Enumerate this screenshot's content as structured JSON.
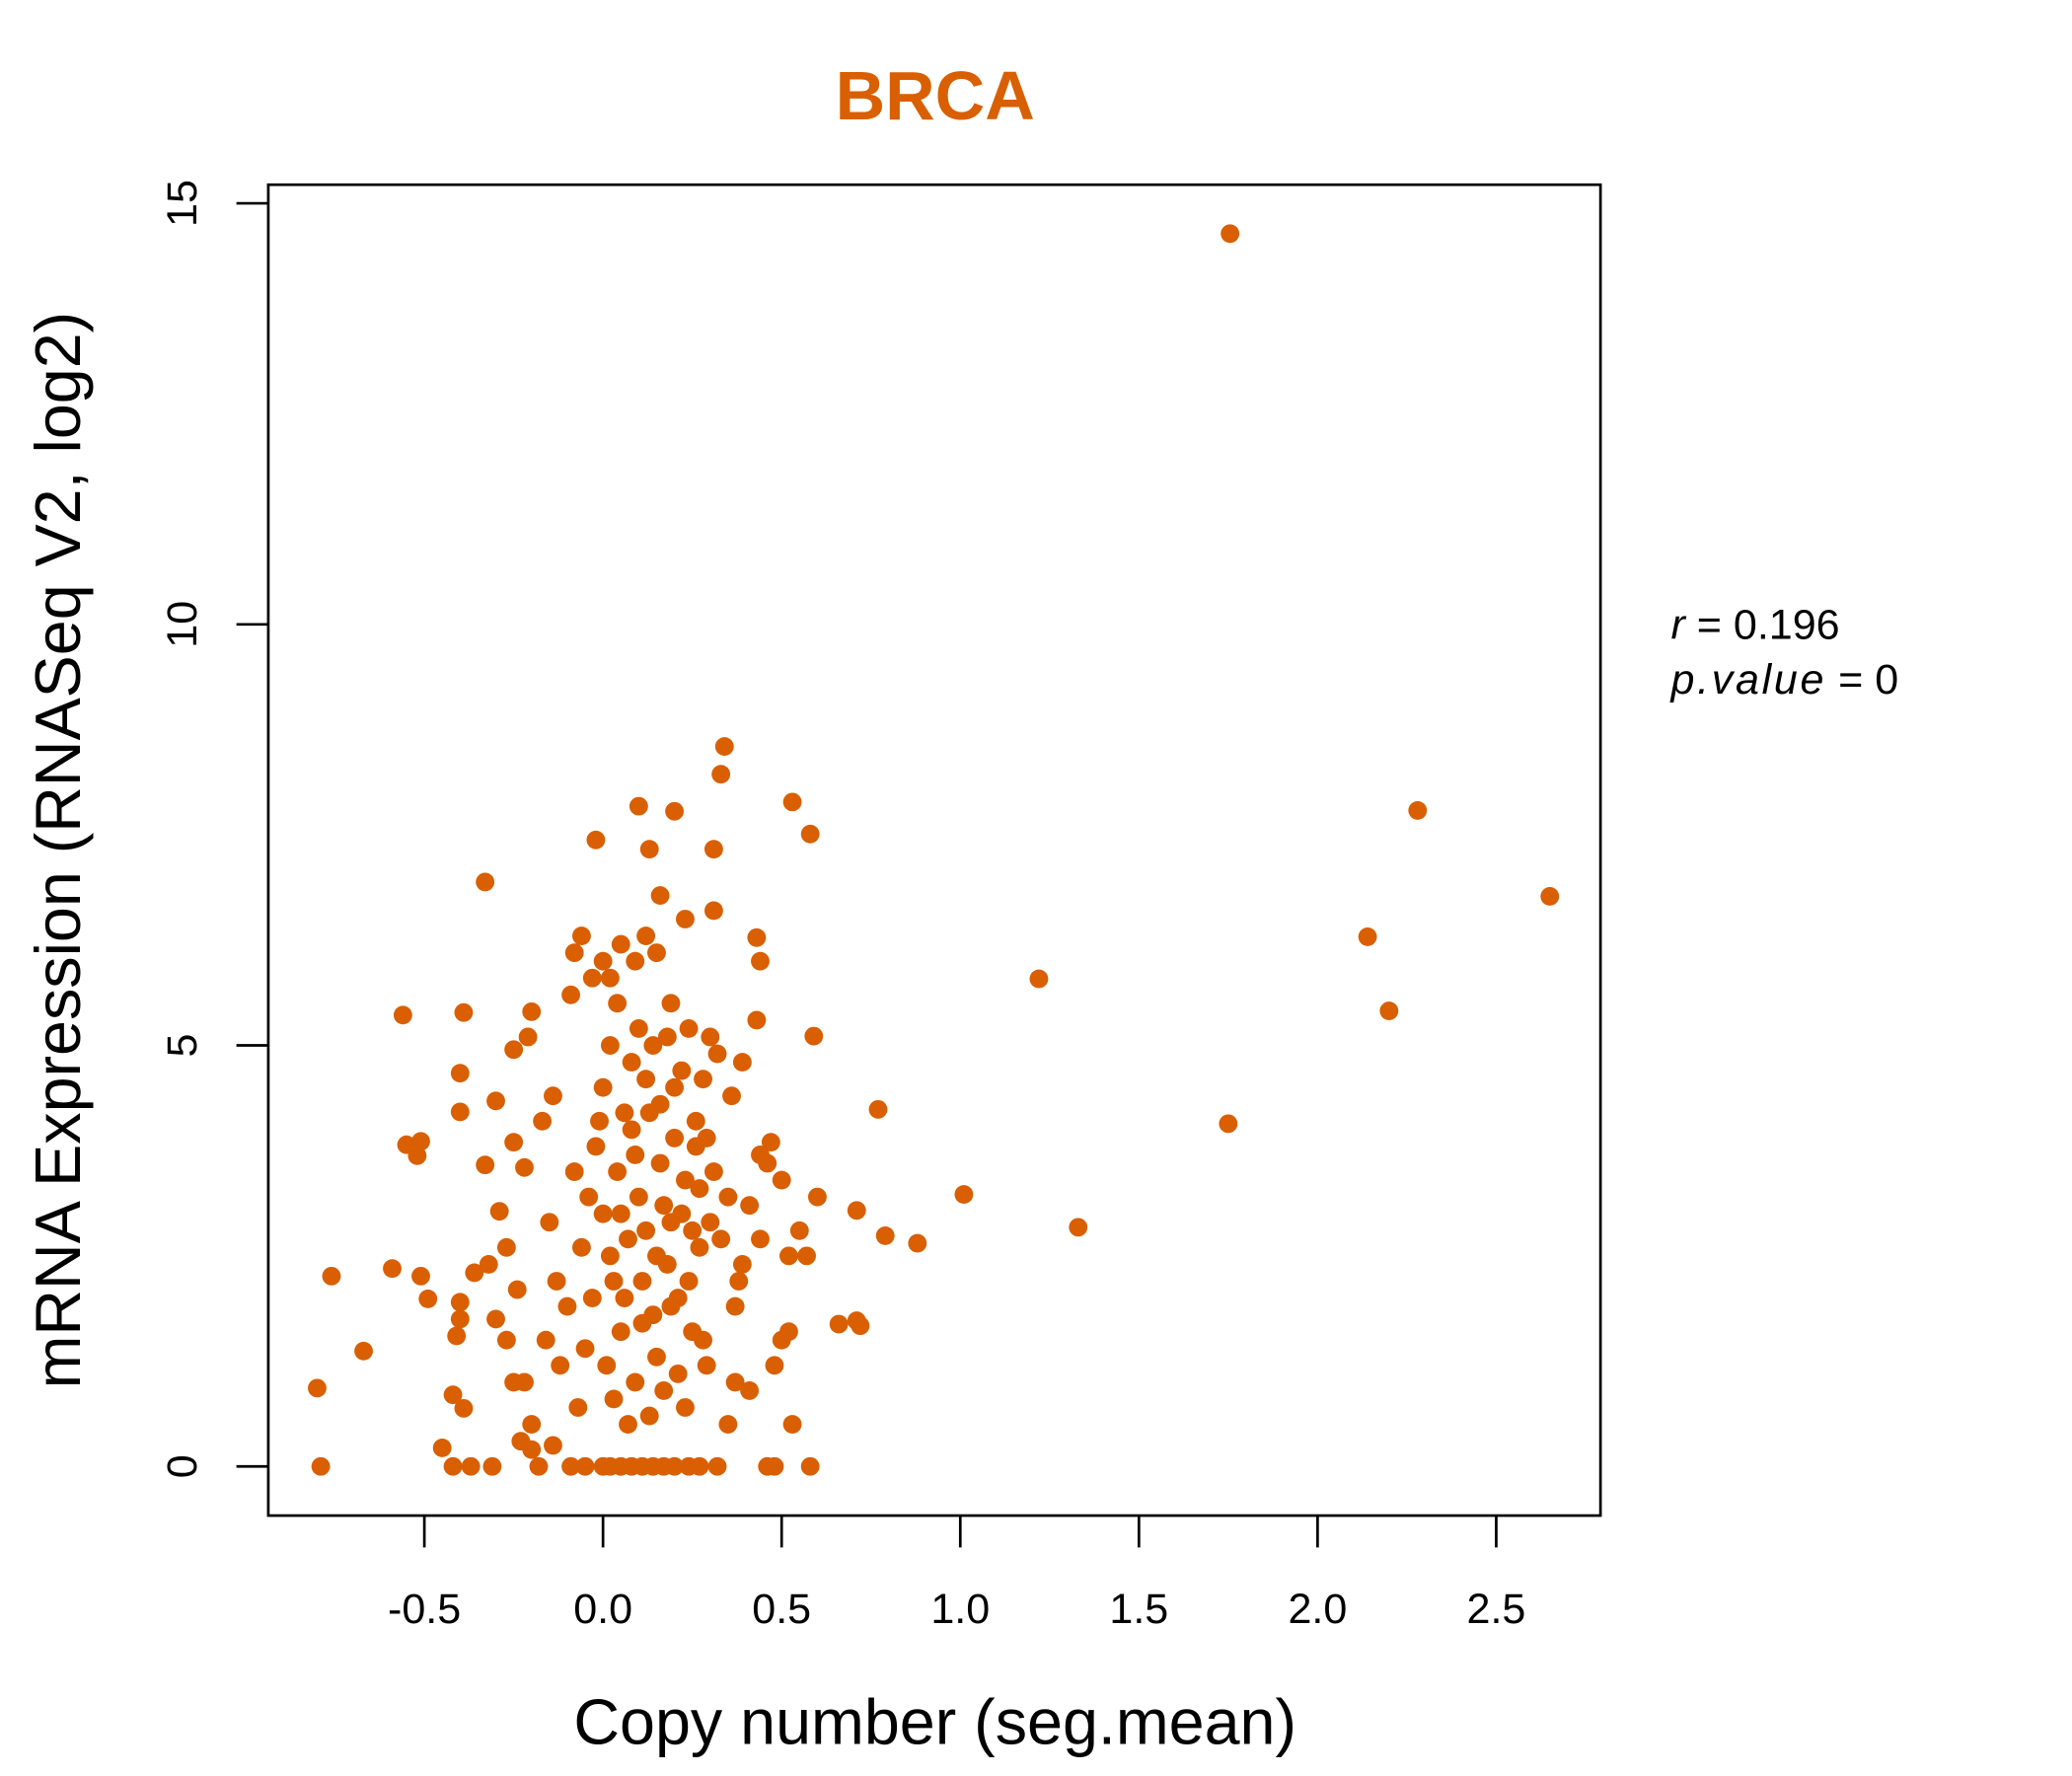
{
  "chart_data": {
    "type": "scatter",
    "title": "BRCA",
    "xlabel": "Copy number (seg.mean)",
    "ylabel": "mRNA Expression (RNASeq V2, log2)",
    "xlim": [
      -0.95,
      2.8
    ],
    "ylim": [
      -0.6,
      15.5
    ],
    "x_ticks": [
      -0.5,
      0.0,
      0.5,
      1.0,
      1.5,
      2.0,
      2.5
    ],
    "x_tick_labels": [
      "-0.5",
      "0.0",
      "0.5",
      "1.0",
      "1.5",
      "2.0",
      "2.5"
    ],
    "y_ticks": [
      0,
      5,
      10,
      15
    ],
    "y_tick_labels": [
      "0",
      "5",
      "10",
      "15"
    ],
    "grid": false,
    "point_color": "#D95F02",
    "title_color": "#D95F02",
    "annotation": {
      "r_label": "r",
      "r_value": "0.196",
      "p_label": "p.value",
      "p_value": "0",
      "placement": "right"
    },
    "points": [
      [
        1.755,
        14.64
      ],
      [
        2.28,
        7.79
      ],
      [
        2.65,
        6.77
      ],
      [
        2.14,
        6.29
      ],
      [
        2.2,
        5.41
      ],
      [
        1.75,
        4.07
      ],
      [
        1.22,
        5.79
      ],
      [
        1.33,
        2.84
      ],
      [
        1.01,
        3.23
      ],
      [
        0.88,
        2.65
      ],
      [
        0.79,
        2.74
      ],
      [
        0.77,
        4.24
      ],
      [
        0.34,
        8.55
      ],
      [
        0.33,
        8.22
      ],
      [
        0.53,
        7.89
      ],
      [
        0.58,
        7.51
      ],
      [
        -0.02,
        7.44
      ],
      [
        -0.33,
        6.94
      ],
      [
        0.1,
        7.84
      ],
      [
        0.2,
        7.78
      ],
      [
        0.13,
        7.33
      ],
      [
        0.31,
        7.33
      ],
      [
        0.16,
        6.78
      ],
      [
        -0.56,
        5.36
      ],
      [
        -0.39,
        5.39
      ],
      [
        0.59,
        5.11
      ],
      [
        -0.8,
        0.93
      ],
      [
        -0.79,
        0
      ],
      [
        -0.76,
        2.26
      ],
      [
        -0.67,
        1.37
      ],
      [
        -0.59,
        2.35
      ],
      [
        -0.51,
        2.26
      ],
      [
        -0.49,
        1.99
      ],
      [
        -0.55,
        3.82
      ],
      [
        -0.52,
        3.69
      ],
      [
        -0.51,
        3.86
      ],
      [
        -0.45,
        0.22
      ],
      [
        -0.42,
        0
      ],
      [
        -0.37,
        0
      ],
      [
        -0.31,
        0
      ],
      [
        -0.4,
        4.67
      ],
      [
        -0.4,
        4.21
      ],
      [
        -0.33,
        3.58
      ],
      [
        -0.3,
        4.34
      ],
      [
        -0.29,
        3.03
      ],
      [
        -0.42,
        0.85
      ],
      [
        -0.39,
        0.69
      ],
      [
        0.71,
        1.73
      ],
      [
        0.66,
        1.69
      ],
      [
        0.72,
        1.67
      ],
      [
        0.6,
        3.2
      ],
      [
        0.71,
        3.04
      ],
      [
        0.53,
        0.5
      ],
      [
        0.58,
        0
      ],
      [
        0.46,
        0
      ],
      [
        0.48,
        0
      ],
      [
        0.43,
        6.28
      ],
      [
        0.44,
        6.0
      ],
      [
        0.31,
        6.6
      ],
      [
        0.23,
        6.5
      ],
      [
        -0.25,
        4.95
      ],
      [
        -0.2,
        5.4
      ],
      [
        -0.21,
        5.1
      ],
      [
        -0.17,
        4.1
      ],
      [
        -0.14,
        4.4
      ],
      [
        -0.25,
        3.85
      ],
      [
        -0.22,
        3.55
      ],
      [
        -0.27,
        2.6
      ],
      [
        -0.24,
        2.1
      ],
      [
        -0.3,
        1.75
      ],
      [
        -0.27,
        1.5
      ],
      [
        -0.36,
        2.3
      ],
      [
        -0.32,
        2.4
      ],
      [
        -0.41,
        1.55
      ],
      [
        -0.4,
        1.75
      ],
      [
        -0.4,
        1.95
      ],
      [
        -0.25,
        1.0
      ],
      [
        -0.22,
        1.0
      ],
      [
        -0.2,
        0.5
      ],
      [
        -0.2,
        0.2
      ],
      [
        -0.18,
        0
      ],
      [
        -0.23,
        0.3
      ],
      [
        -0.14,
        0.25
      ],
      [
        -0.15,
        2.9
      ],
      [
        -0.13,
        2.2
      ],
      [
        -0.1,
        1.9
      ],
      [
        -0.16,
        1.5
      ],
      [
        -0.12,
        1.2
      ],
      [
        -0.09,
        5.6
      ],
      [
        -0.08,
        6.1
      ],
      [
        -0.06,
        6.3
      ],
      [
        -0.03,
        5.8
      ],
      [
        0.5,
        3.4
      ],
      [
        0.46,
        3.6
      ],
      [
        0.44,
        3.7
      ],
      [
        0.47,
        3.85
      ],
      [
        0.52,
        2.5
      ],
      [
        0.55,
        2.8
      ],
      [
        0.57,
        2.5
      ],
      [
        0.5,
        1.5
      ],
      [
        0.52,
        1.6
      ],
      [
        0.48,
        1.2
      ],
      [
        0.41,
        0.9
      ],
      [
        0.37,
        1.0
      ],
      [
        0.36,
        4.4
      ],
      [
        0.39,
        4.8
      ],
      [
        0.43,
        5.3
      ],
      [
        0.44,
        2.7
      ],
      [
        0.38,
        2.2
      ],
      [
        0.0,
        0
      ],
      [
        0.02,
        0
      ],
      [
        0.05,
        0
      ],
      [
        0.08,
        0
      ],
      [
        0.11,
        0
      ],
      [
        0.14,
        0
      ],
      [
        0.17,
        0
      ],
      [
        0.2,
        0
      ],
      [
        0.24,
        0
      ],
      [
        0.27,
        0
      ],
      [
        0.32,
        0
      ],
      [
        -0.09,
        0
      ],
      [
        -0.05,
        0
      ],
      [
        0.35,
        0.5
      ],
      [
        0.0,
        3.0
      ],
      [
        0.02,
        2.5
      ],
      [
        0.04,
        3.5
      ],
      [
        0.06,
        2.0
      ],
      [
        0.08,
        4.0
      ],
      [
        0.1,
        3.2
      ],
      [
        0.12,
        2.8
      ],
      [
        0.14,
        1.8
      ],
      [
        0.16,
        3.6
      ],
      [
        0.18,
        2.4
      ],
      [
        0.2,
        4.5
      ],
      [
        0.22,
        3.0
      ],
      [
        0.24,
        2.2
      ],
      [
        0.26,
        3.8
      ],
      [
        0.28,
        1.5
      ],
      [
        0.3,
        2.9
      ],
      [
        0.01,
        1.2
      ],
      [
        0.03,
        0.8
      ],
      [
        0.05,
        1.6
      ],
      [
        0.07,
        0.5
      ],
      [
        0.09,
        1.0
      ],
      [
        0.11,
        2.2
      ],
      [
        0.13,
        0.6
      ],
      [
        0.15,
        1.3
      ],
      [
        0.17,
        0.9
      ],
      [
        0.19,
        1.9
      ],
      [
        0.21,
        1.1
      ],
      [
        0.23,
        0.7
      ],
      [
        0.25,
        1.6
      ],
      [
        0.27,
        2.6
      ],
      [
        0.29,
        1.2
      ],
      [
        0.0,
        4.5
      ],
      [
        0.02,
        5.0
      ],
      [
        0.04,
        5.5
      ],
      [
        0.06,
        4.2
      ],
      [
        0.08,
        4.8
      ],
      [
        0.1,
        5.2
      ],
      [
        0.12,
        4.6
      ],
      [
        0.14,
        5.0
      ],
      [
        0.16,
        4.3
      ],
      [
        0.18,
        5.1
      ],
      [
        0.2,
        3.9
      ],
      [
        0.22,
        4.7
      ],
      [
        0.24,
        5.2
      ],
      [
        0.26,
        4.1
      ],
      [
        0.28,
        4.6
      ],
      [
        0.3,
        5.1
      ],
      [
        0.32,
        4.9
      ],
      [
        -0.02,
        3.8
      ],
      [
        -0.04,
        3.2
      ],
      [
        -0.06,
        2.6
      ],
      [
        -0.08,
        3.5
      ],
      [
        -0.03,
        2.0
      ],
      [
        -0.05,
        1.4
      ],
      [
        -0.07,
        0.7
      ],
      [
        -0.01,
        4.1
      ],
      [
        0.0,
        6.0
      ],
      [
        0.02,
        5.8
      ],
      [
        0.05,
        6.2
      ],
      [
        0.09,
        6.0
      ],
      [
        0.12,
        6.3
      ],
      [
        0.15,
        6.1
      ],
      [
        0.19,
        5.5
      ],
      [
        0.03,
        2.2
      ],
      [
        0.05,
        3.0
      ],
      [
        0.07,
        2.7
      ],
      [
        0.09,
        3.7
      ],
      [
        0.11,
        1.7
      ],
      [
        0.13,
        4.2
      ],
      [
        0.15,
        2.5
      ],
      [
        0.17,
        3.1
      ],
      [
        0.19,
        2.9
      ],
      [
        0.21,
        2.0
      ],
      [
        0.23,
        3.4
      ],
      [
        0.25,
        2.8
      ],
      [
        0.27,
        3.3
      ],
      [
        0.29,
        3.9
      ],
      [
        0.31,
        3.5
      ],
      [
        0.33,
        2.7
      ],
      [
        0.35,
        3.2
      ],
      [
        0.37,
        1.9
      ],
      [
        0.39,
        2.4
      ],
      [
        0.41,
        3.1
      ]
    ]
  }
}
